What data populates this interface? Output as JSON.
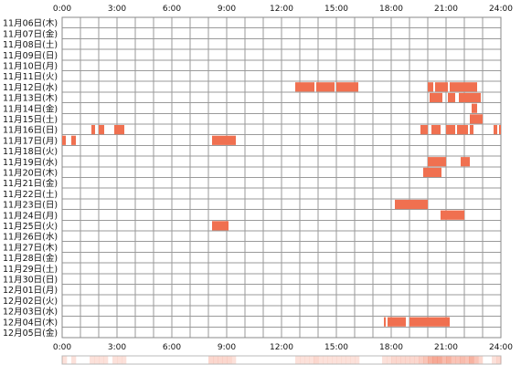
{
  "chart_data": {
    "type": "timeline",
    "x_unit": "hour of day",
    "xlim": [
      0,
      24
    ],
    "x_ticks": [
      {
        "hour": 0,
        "label": "0:00"
      },
      {
        "hour": 3,
        "label": "3:00"
      },
      {
        "hour": 6,
        "label": "6:00"
      },
      {
        "hour": 9,
        "label": "9:00"
      },
      {
        "hour": 12,
        "label": "12:00"
      },
      {
        "hour": 15,
        "label": "15:00"
      },
      {
        "hour": 18,
        "label": "18:00"
      },
      {
        "hour": 21,
        "label": "21:00"
      },
      {
        "hour": 24,
        "label": "24:00"
      }
    ],
    "minor_tick_interval_hours": 1,
    "grid": true,
    "days": [
      "11月06日(木)",
      "11月07日(金)",
      "11月08日(土)",
      "11月09日(日)",
      "11月10日(月)",
      "11月11日(火)",
      "11月12日(水)",
      "11月13日(木)",
      "11月14日(金)",
      "11月15日(土)",
      "11月16日(日)",
      "11月17日(月)",
      "11月18日(火)",
      "11月19日(水)",
      "11月20日(木)",
      "11月21日(金)",
      "11月22日(土)",
      "11月23日(日)",
      "11月24日(月)",
      "11月25日(火)",
      "11月26日(水)",
      "11月27日(木)",
      "11月28日(金)",
      "11月29日(土)",
      "11月30日(日)",
      "12月01日(月)",
      "12月02日(火)",
      "12月03日(水)",
      "12月04日(木)",
      "12月05日(金)"
    ],
    "bar_color": "#f07050",
    "activity": [
      {
        "day": "11月12日(水)",
        "start": 12.75,
        "end": 13.8
      },
      {
        "day": "11月12日(水)",
        "start": 13.9,
        "end": 14.9
      },
      {
        "day": "11月12日(水)",
        "start": 15.0,
        "end": 16.2
      },
      {
        "day": "11月12日(水)",
        "start": 20.0,
        "end": 20.3
      },
      {
        "day": "11月12日(水)",
        "start": 20.4,
        "end": 21.1
      },
      {
        "day": "11月12日(水)",
        "start": 21.2,
        "end": 22.7
      },
      {
        "day": "11月13日(木)",
        "start": 20.1,
        "end": 20.8
      },
      {
        "day": "11月13日(木)",
        "start": 21.1,
        "end": 21.5
      },
      {
        "day": "11月13日(木)",
        "start": 21.7,
        "end": 22.9
      },
      {
        "day": "11月14日(金)",
        "start": 22.4,
        "end": 22.7
      },
      {
        "day": "11月15日(土)",
        "start": 22.3,
        "end": 23.0
      },
      {
        "day": "11月16日(日)",
        "start": 1.6,
        "end": 1.8
      },
      {
        "day": "11月16日(日)",
        "start": 2.0,
        "end": 2.3
      },
      {
        "day": "11月16日(日)",
        "start": 2.85,
        "end": 3.4
      },
      {
        "day": "11月16日(日)",
        "start": 19.6,
        "end": 20.0
      },
      {
        "day": "11月16日(日)",
        "start": 20.2,
        "end": 20.7
      },
      {
        "day": "11月16日(日)",
        "start": 21.0,
        "end": 21.5
      },
      {
        "day": "11月16日(日)",
        "start": 21.6,
        "end": 22.2
      },
      {
        "day": "11月16日(日)",
        "start": 22.3,
        "end": 22.5
      },
      {
        "day": "11月16日(日)",
        "start": 23.6,
        "end": 23.8
      },
      {
        "day": "11月16日(日)",
        "start": 23.9,
        "end": 24.0
      },
      {
        "day": "11月17日(月)",
        "start": 0.0,
        "end": 0.2
      },
      {
        "day": "11月17日(月)",
        "start": 0.5,
        "end": 0.75
      },
      {
        "day": "11月17日(月)",
        "start": 8.2,
        "end": 9.5
      },
      {
        "day": "11月19日(水)",
        "start": 20.0,
        "end": 21.0
      },
      {
        "day": "11月19日(水)",
        "start": 21.8,
        "end": 22.3
      },
      {
        "day": "11月20日(木)",
        "start": 19.75,
        "end": 20.75
      },
      {
        "day": "11月23日(日)",
        "start": 18.2,
        "end": 20.0
      },
      {
        "day": "11月24日(月)",
        "start": 20.7,
        "end": 22.0
      },
      {
        "day": "11月25日(火)",
        "start": 8.2,
        "end": 9.1
      },
      {
        "day": "12月04日(木)",
        "start": 17.6,
        "end": 17.7
      },
      {
        "day": "12月04日(木)",
        "start": 17.8,
        "end": 18.8
      },
      {
        "day": "12月04日(木)",
        "start": 19.0,
        "end": 21.2
      }
    ]
  }
}
